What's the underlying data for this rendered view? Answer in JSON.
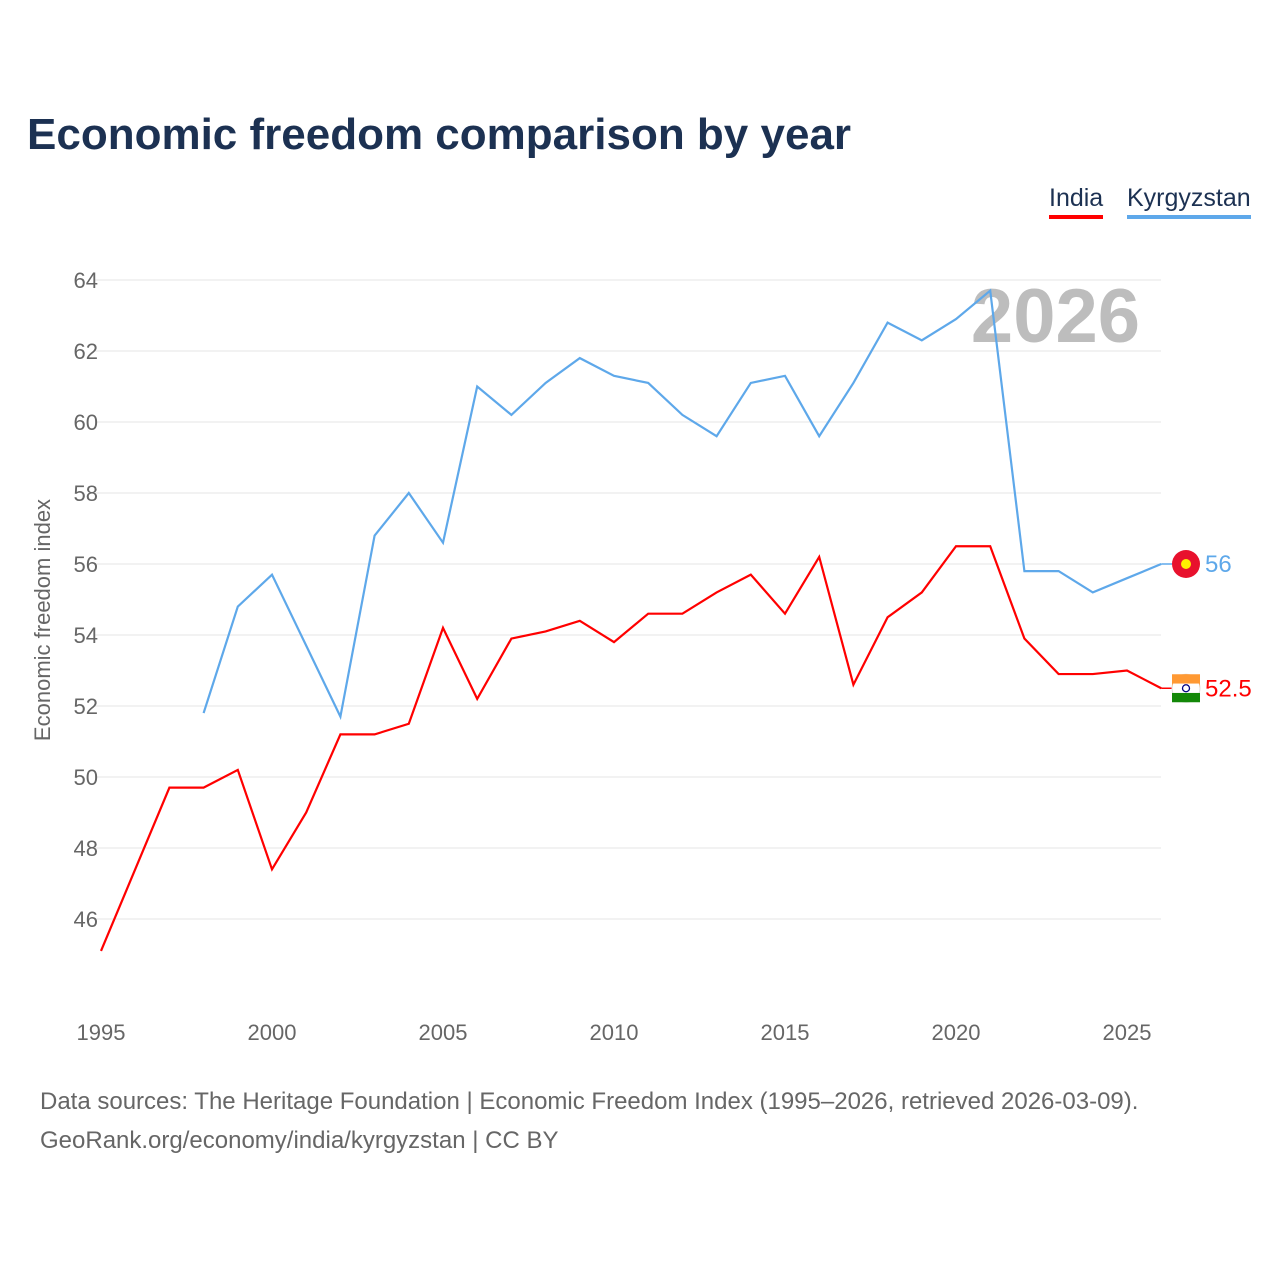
{
  "title": "Economic freedom comparison by year",
  "legend": [
    {
      "label": "India",
      "color": "#ff0000"
    },
    {
      "label": "Kyrgyzstan",
      "color": "#5ea8ea"
    }
  ],
  "footer": {
    "line1": "Data sources: The Heritage Foundation | Economic Freedom Index (1995–2026, retrieved 2026-03-09).",
    "line2": "GeoRank.org/economy/india/kyrgyzstan | CC BY"
  },
  "chart_data": {
    "type": "line",
    "title": "Economic freedom comparison by year",
    "xlabel": "",
    "ylabel": "Economic freedom index",
    "year_watermark": "2026",
    "xlim": [
      1995,
      2026
    ],
    "ylim": [
      44.5,
      64.5
    ],
    "xticks": [
      1995,
      2000,
      2005,
      2010,
      2015,
      2020,
      2025
    ],
    "yticks": [
      46,
      48,
      50,
      52,
      54,
      56,
      58,
      60,
      62,
      64
    ],
    "grid": true,
    "legend_position": "top-right",
    "series": [
      {
        "name": "India",
        "color": "#ff0000",
        "end_label": "52.5",
        "x": [
          1995,
          1996,
          1997,
          1998,
          1999,
          2000,
          2001,
          2002,
          2003,
          2004,
          2005,
          2006,
          2007,
          2008,
          2009,
          2010,
          2011,
          2012,
          2013,
          2014,
          2015,
          2016,
          2017,
          2018,
          2019,
          2020,
          2021,
          2022,
          2023,
          2024,
          2025,
          2026
        ],
        "values": [
          45.1,
          47.4,
          49.7,
          49.7,
          50.2,
          47.4,
          49.0,
          51.2,
          51.2,
          51.5,
          54.2,
          52.2,
          53.9,
          54.1,
          54.4,
          53.8,
          54.6,
          54.6,
          55.2,
          55.7,
          54.6,
          56.2,
          52.6,
          54.5,
          55.2,
          56.5,
          56.5,
          53.9,
          52.9,
          52.9,
          53.0,
          52.5
        ]
      },
      {
        "name": "Kyrgyzstan",
        "color": "#5ea8ea",
        "end_label": "56",
        "x": [
          1998,
          1999,
          2000,
          2001,
          2002,
          2003,
          2004,
          2005,
          2006,
          2007,
          2008,
          2009,
          2010,
          2011,
          2012,
          2013,
          2014,
          2015,
          2016,
          2017,
          2018,
          2019,
          2020,
          2021,
          2022,
          2023,
          2024,
          2025,
          2026
        ],
        "values": [
          51.8,
          54.8,
          55.7,
          53.7,
          51.7,
          56.8,
          58.0,
          56.6,
          61.0,
          60.2,
          61.1,
          61.8,
          61.3,
          61.1,
          60.2,
          59.6,
          61.1,
          61.3,
          59.6,
          61.1,
          62.8,
          62.3,
          62.9,
          63.7,
          55.8,
          55.8,
          55.2,
          55.6,
          56.0
        ]
      }
    ]
  }
}
